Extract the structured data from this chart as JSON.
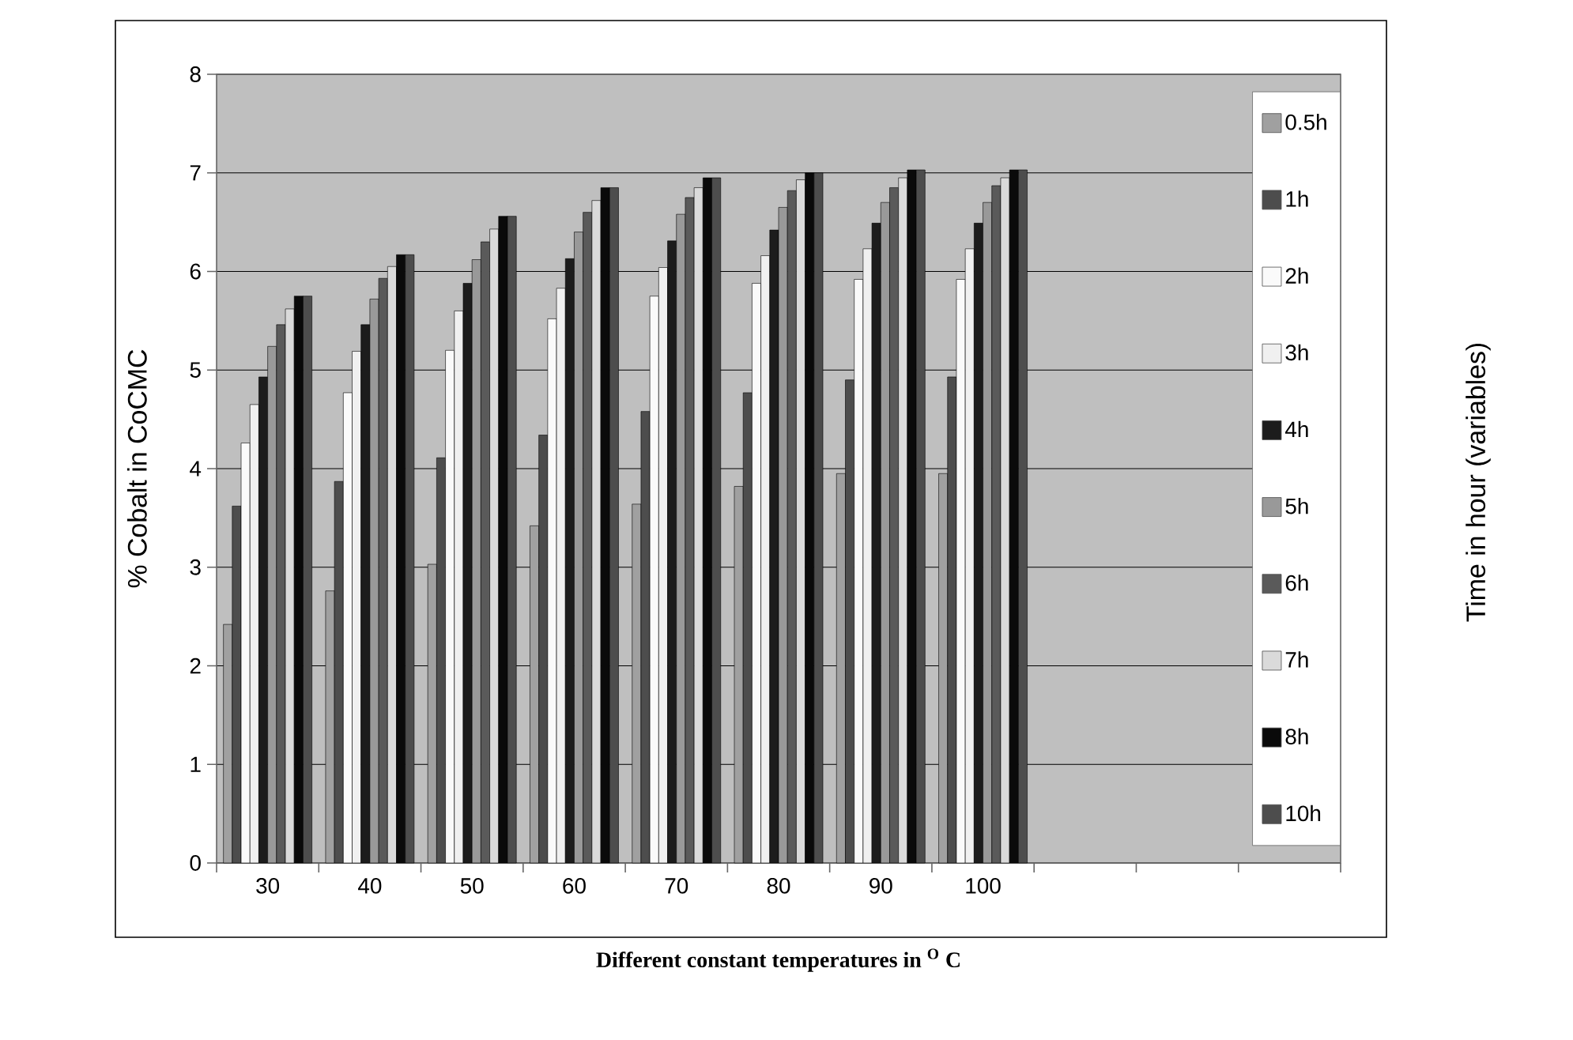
{
  "chart_data": {
    "type": "bar",
    "ylabel": "% Cobalt in CoCMC",
    "xlabel": "**Different constant temperatures in $^{O}$ C**",
    "legend_title": "Time in hour (variables)",
    "categories": [
      "30",
      "40",
      "50",
      "60",
      "70",
      "80",
      "90",
      "100",
      null,
      null,
      null
    ],
    "ylim": [
      0,
      8
    ],
    "yticks": [
      0,
      1,
      2,
      3,
      4,
      5,
      6,
      7,
      8
    ],
    "grid": "y",
    "legend": "right",
    "series": [
      {
        "name": "0.5h",
        "color": "#a0a0a0",
        "values": [
          2.42,
          2.76,
          3.03,
          3.42,
          3.64,
          3.82,
          3.95,
          3.95,
          null,
          null,
          null
        ]
      },
      {
        "name": "1h",
        "color": "#4d4d4d",
        "values": [
          3.62,
          3.87,
          4.11,
          4.34,
          4.58,
          4.77,
          4.9,
          4.93,
          null,
          null,
          null
        ]
      },
      {
        "name": "2h",
        "color": "#fafafa",
        "values": [
          4.26,
          4.77,
          5.2,
          5.52,
          5.75,
          5.88,
          5.92,
          5.92,
          null,
          null,
          null
        ]
      },
      {
        "name": "3h",
        "color": "#f0f0f0",
        "values": [
          4.65,
          5.19,
          5.6,
          5.83,
          6.04,
          6.16,
          6.23,
          6.23,
          null,
          null,
          null
        ]
      },
      {
        "name": "4h",
        "color": "#1c1c1c",
        "values": [
          4.93,
          5.46,
          5.88,
          6.13,
          6.31,
          6.42,
          6.49,
          6.49,
          null,
          null,
          null
        ]
      },
      {
        "name": "5h",
        "color": "#999999",
        "values": [
          5.24,
          5.72,
          6.12,
          6.4,
          6.58,
          6.65,
          6.7,
          6.7,
          null,
          null,
          null
        ]
      },
      {
        "name": "6h",
        "color": "#5a5a5a",
        "values": [
          5.46,
          5.93,
          6.3,
          6.6,
          6.75,
          6.82,
          6.85,
          6.87,
          null,
          null,
          null
        ]
      },
      {
        "name": "7h",
        "color": "#dadada",
        "values": [
          5.62,
          6.05,
          6.43,
          6.72,
          6.85,
          6.93,
          6.95,
          6.95,
          null,
          null,
          null
        ]
      },
      {
        "name": "8h",
        "color": "#0a0a0a",
        "values": [
          5.75,
          6.17,
          6.56,
          6.85,
          6.95,
          7.0,
          7.03,
          7.03,
          null,
          null,
          null
        ]
      },
      {
        "name": "10h",
        "color": "#4d4d4d",
        "values": [
          5.75,
          6.17,
          6.56,
          6.85,
          6.95,
          7.0,
          7.03,
          7.03,
          null,
          null,
          null
        ]
      }
    ]
  }
}
